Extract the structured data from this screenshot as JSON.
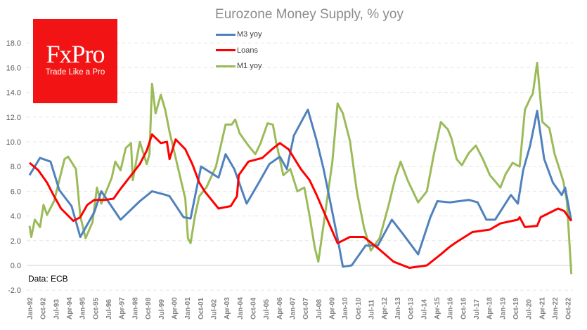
{
  "logo": {
    "brand": "FxPro",
    "tagline": "Trade Like a Pro"
  },
  "source": "Data: ECB",
  "chart_data": {
    "type": "line",
    "title": "Eurozone  Money Supply, % yoy",
    "xlabel": "",
    "ylabel": "",
    "ylim": [
      -2,
      18
    ],
    "grid": true,
    "legend_position": "top-center",
    "yticks": [
      "-2.0",
      "0.0",
      "2.0",
      "4.0",
      "6.0",
      "8.0",
      "10.0",
      "12.0",
      "14.0",
      "16.0",
      "18.0"
    ],
    "xticks": [
      "Jan-92",
      "Oct-92",
      "Jul-93",
      "Apr-94",
      "Jan-95",
      "Oct-95",
      "Jul-96",
      "Apr-97",
      "Jan-98",
      "Oct-98",
      "Jul-99",
      "Apr-00",
      "Jan-01",
      "Oct-01",
      "Jul-02",
      "Apr-03",
      "Jan-04",
      "Oct-04",
      "Jul-05",
      "Apr-06",
      "Jan-07",
      "Oct-07",
      "Jul-08",
      "Apr-09",
      "Jan-10",
      "Oct-10",
      "Jul-11",
      "Apr-12",
      "Jan-13",
      "Oct-13",
      "Jul-14",
      "Apr-15",
      "Jan-16",
      "Oct-16",
      "Jul-17",
      "Apr-18",
      "Jan-19",
      "Oct-19",
      "Jul-20",
      "Apr-21",
      "Jan-22",
      "Oct-22"
    ],
    "xrange_years": [
      1992.0,
      2022.95
    ],
    "series": [
      {
        "name": "M3 yoy",
        "color": "#4f81bd",
        "points": [
          [
            1992.0,
            7.3
          ],
          [
            1992.6,
            8.7
          ],
          [
            1993.2,
            8.4
          ],
          [
            1993.7,
            6.1
          ],
          [
            1994.4,
            4.8
          ],
          [
            1994.9,
            2.3
          ],
          [
            1995.7,
            4.3
          ],
          [
            1996.1,
            6.0
          ],
          [
            1997.2,
            3.7
          ],
          [
            1998.3,
            5.2
          ],
          [
            1999.0,
            6.0
          ],
          [
            1999.8,
            5.7
          ],
          [
            2000.0,
            5.6
          ],
          [
            2000.8,
            3.9
          ],
          [
            2001.2,
            3.8
          ],
          [
            2001.8,
            8.0
          ],
          [
            2002.8,
            7.1
          ],
          [
            2003.2,
            9.0
          ],
          [
            2003.7,
            7.8
          ],
          [
            2004.4,
            5.0
          ],
          [
            2005.1,
            6.7
          ],
          [
            2005.7,
            8.2
          ],
          [
            2006.3,
            8.8
          ],
          [
            2006.7,
            7.8
          ],
          [
            2007.1,
            10.5
          ],
          [
            2007.9,
            12.6
          ],
          [
            2008.4,
            10.1
          ],
          [
            2008.8,
            7.8
          ],
          [
            2009.2,
            5.0
          ],
          [
            2009.6,
            2.2
          ],
          [
            2009.9,
            -0.1
          ],
          [
            2010.4,
            0.0
          ],
          [
            2011.2,
            1.6
          ],
          [
            2011.9,
            1.6
          ],
          [
            2012.7,
            3.7
          ],
          [
            2013.3,
            2.6
          ],
          [
            2014.2,
            0.9
          ],
          [
            2014.9,
            3.9
          ],
          [
            2015.3,
            5.2
          ],
          [
            2016.0,
            5.1
          ],
          [
            2017.1,
            5.3
          ],
          [
            2017.6,
            5.1
          ],
          [
            2018.1,
            3.7
          ],
          [
            2018.6,
            3.7
          ],
          [
            2019.5,
            5.7
          ],
          [
            2019.9,
            5.0
          ],
          [
            2020.2,
            7.7
          ],
          [
            2020.6,
            9.7
          ],
          [
            2021.0,
            12.5
          ],
          [
            2021.4,
            8.6
          ],
          [
            2021.9,
            6.7
          ],
          [
            2022.4,
            5.7
          ],
          [
            2022.6,
            6.3
          ],
          [
            2022.95,
            3.6
          ]
        ]
      },
      {
        "name": "Loans",
        "color": "#ff0000",
        "points": [
          [
            1992.0,
            8.3
          ],
          [
            1992.5,
            7.7
          ],
          [
            1993.0,
            6.7
          ],
          [
            1993.4,
            5.6
          ],
          [
            1993.8,
            4.6
          ],
          [
            1994.5,
            3.6
          ],
          [
            1994.9,
            3.9
          ],
          [
            1995.3,
            4.9
          ],
          [
            1995.7,
            5.3
          ],
          [
            1996.3,
            5.3
          ],
          [
            1996.8,
            5.4
          ],
          [
            1997.2,
            6.2
          ],
          [
            1997.7,
            7.1
          ],
          [
            1998.3,
            8.2
          ],
          [
            1998.7,
            9.3
          ],
          [
            1999.0,
            10.6
          ],
          [
            1999.5,
            9.9
          ],
          [
            1999.85,
            10.0
          ],
          [
            2000.0,
            8.6
          ],
          [
            2000.35,
            10.2
          ],
          [
            2000.9,
            9.4
          ],
          [
            2001.3,
            8.2
          ],
          [
            2001.7,
            6.7
          ],
          [
            2002.0,
            6.0
          ],
          [
            2002.8,
            4.6
          ],
          [
            2003.5,
            4.8
          ],
          [
            2003.85,
            5.6
          ],
          [
            2003.95,
            7.3
          ],
          [
            2004.5,
            8.4
          ],
          [
            2005.3,
            8.7
          ],
          [
            2005.85,
            9.4
          ],
          [
            2006.3,
            9.9
          ],
          [
            2006.8,
            9.4
          ],
          [
            2007.5,
            7.8
          ],
          [
            2008.0,
            6.9
          ],
          [
            2008.4,
            5.7
          ],
          [
            2008.8,
            4.4
          ],
          [
            2009.6,
            1.8
          ],
          [
            2010.3,
            2.3
          ],
          [
            2011.1,
            2.3
          ],
          [
            2011.9,
            1.4
          ],
          [
            2012.8,
            0.3
          ],
          [
            2013.7,
            -0.2
          ],
          [
            2014.7,
            0.0
          ],
          [
            2015.5,
            0.9
          ],
          [
            2016.0,
            1.5
          ],
          [
            2016.4,
            1.9
          ],
          [
            2017.3,
            2.7
          ],
          [
            2018.3,
            2.9
          ],
          [
            2018.9,
            3.4
          ],
          [
            2019.9,
            3.7
          ],
          [
            2020.0,
            3.9
          ],
          [
            2020.3,
            3.1
          ],
          [
            2021.0,
            3.2
          ],
          [
            2021.2,
            3.9
          ],
          [
            2022.2,
            4.6
          ],
          [
            2022.55,
            4.4
          ],
          [
            2022.95,
            3.6
          ]
        ]
      },
      {
        "name": "M1 yoy",
        "color": "#9bbb59",
        "points": [
          [
            1992.0,
            3.2
          ],
          [
            1992.1,
            2.3
          ],
          [
            1992.3,
            3.7
          ],
          [
            1992.6,
            3.1
          ],
          [
            1992.8,
            4.9
          ],
          [
            1993.0,
            4.1
          ],
          [
            1993.4,
            5.2
          ],
          [
            1994.0,
            8.6
          ],
          [
            1994.2,
            8.8
          ],
          [
            1994.65,
            7.8
          ],
          [
            1994.9,
            4.0
          ],
          [
            1995.2,
            2.2
          ],
          [
            1995.6,
            3.5
          ],
          [
            1995.85,
            6.3
          ],
          [
            1996.1,
            5.0
          ],
          [
            1996.7,
            7.1
          ],
          [
            1996.9,
            8.4
          ],
          [
            1997.2,
            7.7
          ],
          [
            1997.5,
            9.5
          ],
          [
            1997.8,
            9.9
          ],
          [
            1997.9,
            6.9
          ],
          [
            1998.3,
            10.0
          ],
          [
            1998.7,
            8.2
          ],
          [
            1998.85,
            9.0
          ],
          [
            1999.0,
            14.7
          ],
          [
            1999.2,
            12.3
          ],
          [
            1999.5,
            13.8
          ],
          [
            1999.75,
            12.6
          ],
          [
            2000.0,
            10.8
          ],
          [
            2000.5,
            7.8
          ],
          [
            2000.9,
            5.4
          ],
          [
            2001.05,
            2.2
          ],
          [
            2001.2,
            1.8
          ],
          [
            2001.45,
            4.0
          ],
          [
            2001.7,
            5.6
          ],
          [
            2002.1,
            6.3
          ],
          [
            2002.65,
            8.0
          ],
          [
            2003.2,
            11.4
          ],
          [
            2003.55,
            11.4
          ],
          [
            2003.75,
            11.8
          ],
          [
            2004.0,
            10.7
          ],
          [
            2004.5,
            9.7
          ],
          [
            2004.9,
            9.0
          ],
          [
            2005.2,
            9.9
          ],
          [
            2005.6,
            11.5
          ],
          [
            2005.9,
            11.4
          ],
          [
            2006.1,
            9.9
          ],
          [
            2006.5,
            7.3
          ],
          [
            2006.9,
            7.8
          ],
          [
            2007.3,
            6.0
          ],
          [
            2007.7,
            6.3
          ],
          [
            2008.0,
            4.0
          ],
          [
            2008.3,
            1.4
          ],
          [
            2008.5,
            0.3
          ],
          [
            2008.8,
            3.3
          ],
          [
            2009.3,
            8.4
          ],
          [
            2009.6,
            13.1
          ],
          [
            2009.9,
            12.3
          ],
          [
            2010.3,
            10.1
          ],
          [
            2010.7,
            6.0
          ],
          [
            2011.1,
            3.1
          ],
          [
            2011.5,
            1.2
          ],
          [
            2012.0,
            2.2
          ],
          [
            2012.5,
            4.8
          ],
          [
            2012.9,
            7.1
          ],
          [
            2013.2,
            8.4
          ],
          [
            2013.6,
            6.9
          ],
          [
            2014.2,
            5.1
          ],
          [
            2014.7,
            6.0
          ],
          [
            2015.1,
            9.0
          ],
          [
            2015.5,
            11.6
          ],
          [
            2015.9,
            11.0
          ],
          [
            2016.1,
            10.3
          ],
          [
            2016.4,
            8.6
          ],
          [
            2016.7,
            8.1
          ],
          [
            2017.1,
            9.1
          ],
          [
            2017.5,
            9.7
          ],
          [
            2017.9,
            8.6
          ],
          [
            2018.3,
            7.3
          ],
          [
            2018.9,
            6.3
          ],
          [
            2019.2,
            7.4
          ],
          [
            2019.6,
            8.3
          ],
          [
            2020.0,
            8.0
          ],
          [
            2020.3,
            12.6
          ],
          [
            2020.6,
            13.5
          ],
          [
            2020.75,
            13.9
          ],
          [
            2021.0,
            16.4
          ],
          [
            2021.3,
            11.6
          ],
          [
            2021.7,
            11.1
          ],
          [
            2022.0,
            9.0
          ],
          [
            2022.5,
            6.8
          ],
          [
            2022.7,
            5.2
          ],
          [
            2022.95,
            -0.7
          ]
        ]
      }
    ]
  }
}
